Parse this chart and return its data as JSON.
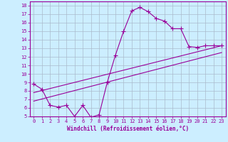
{
  "background_color": "#cceeff",
  "grid_color": "#aabbcc",
  "line_color": "#990099",
  "xlabel": "Windchill (Refroidissement éolien,°C)",
  "xlim": [
    -0.5,
    23.5
  ],
  "ylim": [
    5,
    18.5
  ],
  "xticks": [
    0,
    1,
    2,
    3,
    4,
    5,
    6,
    7,
    8,
    9,
    10,
    11,
    12,
    13,
    14,
    15,
    16,
    17,
    18,
    19,
    20,
    21,
    22,
    23
  ],
  "yticks": [
    5,
    6,
    7,
    8,
    9,
    10,
    11,
    12,
    13,
    14,
    15,
    16,
    17,
    18
  ],
  "line1_x": [
    0,
    1,
    2,
    3,
    4,
    5,
    6,
    7,
    8,
    9,
    10,
    11,
    12,
    13,
    14,
    15,
    16,
    17,
    18,
    19,
    20,
    21,
    22,
    23
  ],
  "line1_y": [
    8.8,
    8.2,
    6.3,
    6.1,
    6.3,
    5.0,
    6.3,
    4.9,
    5.2,
    9.0,
    12.2,
    15.0,
    17.4,
    17.8,
    17.3,
    16.5,
    16.2,
    15.3,
    15.3,
    13.2,
    13.1,
    13.3,
    13.3,
    13.3
  ],
  "line2_x": [
    0,
    23
  ],
  "line2_y": [
    7.8,
    13.3
  ],
  "line3_x": [
    0,
    23
  ],
  "line3_y": [
    6.8,
    12.5
  ]
}
